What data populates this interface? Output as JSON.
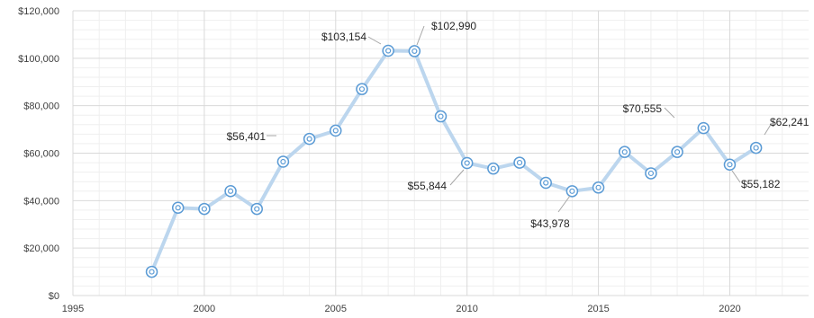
{
  "chart_data": {
    "type": "line",
    "title": "",
    "xlabel": "",
    "ylabel": "",
    "xlim": [
      1995,
      2023
    ],
    "ylim": [
      0,
      120000
    ],
    "x_ticks": [
      1995,
      2000,
      2005,
      2010,
      2015,
      2020
    ],
    "x_tick_labels": [
      "1995",
      "2000",
      "2005",
      "2010",
      "2015",
      "2020"
    ],
    "y_ticks": [
      0,
      20000,
      40000,
      60000,
      80000,
      100000,
      120000
    ],
    "y_tick_labels": [
      "$0",
      "$20,000",
      "$40,000",
      "$60,000",
      "$80,000",
      "$100,000",
      "$120,000"
    ],
    "grid": true,
    "legend": "none",
    "line_color": "#bcd6ee",
    "marker_color": "#5b9bd5",
    "series": [
      {
        "x": [
          1998,
          1999,
          2000,
          2001,
          2002,
          2003,
          2004,
          2005,
          2006,
          2007,
          2008,
          2009,
          2010,
          2011,
          2012,
          2013,
          2014,
          2015,
          2016,
          2017,
          2018,
          2019,
          2020,
          2021
        ],
        "y": [
          10000,
          37000,
          36500,
          44000,
          36500,
          56401,
          66000,
          69500,
          87000,
          103154,
          102990,
          75500,
          55844,
          53500,
          56000,
          47500,
          43978,
          45500,
          60500,
          51500,
          60500,
          70555,
          55182,
          62241
        ]
      }
    ],
    "data_labels": [
      {
        "x": 2003,
        "text": "$56,401"
      },
      {
        "x": 2007,
        "text": "$103,154"
      },
      {
        "x": 2008,
        "text": "$102,990"
      },
      {
        "x": 2010,
        "text": "$55,844"
      },
      {
        "x": 2014,
        "text": "$43,978"
      },
      {
        "x": 2019,
        "text": "$70,555"
      },
      {
        "x": 2020,
        "text": "$55,182"
      },
      {
        "x": 2021,
        "text": "$62,241"
      }
    ]
  }
}
